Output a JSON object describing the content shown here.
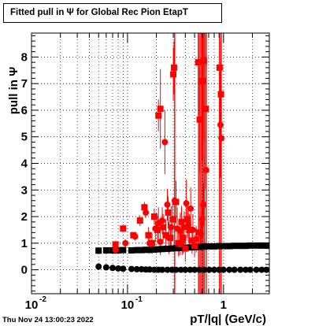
{
  "title": "Fitted pull in  Ψ  for Global Rec Pion EtapT",
  "footer": "Thu Nov 24 13:00:23 2022",
  "chart_data": {
    "type": "scatter",
    "title": "Fitted pull in  Ψ  for Global Rec Pion EtapT",
    "xlabel": "pT/|q| (GeV/c)",
    "ylabel": "pull in  Ψ",
    "xscale": "log",
    "xlim": [
      0.01,
      3.0
    ],
    "ylim": [
      -0.9,
      8.9
    ],
    "grid": true,
    "x_ticks": [
      {
        "value": 0.01,
        "label": "10",
        "exp": "-2"
      },
      {
        "value": 0.1,
        "label": "10",
        "exp": "-1"
      },
      {
        "value": 1,
        "label": "1",
        "exp": ""
      }
    ],
    "y_ticks": [
      0,
      1,
      2,
      3,
      4,
      5,
      6,
      7,
      8
    ],
    "series": [
      {
        "marker": "square",
        "color": "#000000",
        "points": [
          {
            "x": 0.05,
            "y": 0.72
          },
          {
            "x": 0.06,
            "y": 0.73
          },
          {
            "x": 0.07,
            "y": 0.73
          },
          {
            "x": 0.08,
            "y": 0.73
          },
          {
            "x": 0.09,
            "y": 0.74
          },
          {
            "x": 0.11,
            "y": 0.73
          },
          {
            "x": 0.125,
            "y": 0.74
          },
          {
            "x": 0.14,
            "y": 0.74
          },
          {
            "x": 0.155,
            "y": 0.75
          },
          {
            "x": 0.17,
            "y": 0.75
          },
          {
            "x": 0.19,
            "y": 0.76
          },
          {
            "x": 0.21,
            "y": 0.77
          },
          {
            "x": 0.23,
            "y": 0.78
          },
          {
            "x": 0.26,
            "y": 0.79
          },
          {
            "x": 0.29,
            "y": 0.8
          },
          {
            "x": 0.32,
            "y": 0.81
          },
          {
            "x": 0.36,
            "y": 0.82
          },
          {
            "x": 0.4,
            "y": 0.83
          },
          {
            "x": 0.45,
            "y": 0.84
          },
          {
            "x": 0.5,
            "y": 0.85
          },
          {
            "x": 0.56,
            "y": 0.86
          },
          {
            "x": 0.63,
            "y": 0.87
          },
          {
            "x": 0.71,
            "y": 0.88
          },
          {
            "x": 0.8,
            "y": 0.88
          },
          {
            "x": 0.9,
            "y": 0.89
          },
          {
            "x": 1.0,
            "y": 0.89
          },
          {
            "x": 1.15,
            "y": 0.89
          },
          {
            "x": 1.3,
            "y": 0.9
          },
          {
            "x": 1.5,
            "y": 0.9
          },
          {
            "x": 1.7,
            "y": 0.9
          },
          {
            "x": 1.9,
            "y": 0.91
          },
          {
            "x": 2.2,
            "y": 0.91
          },
          {
            "x": 2.5,
            "y": 0.91
          },
          {
            "x": 2.8,
            "y": 0.91
          }
        ]
      },
      {
        "marker": "circle",
        "color": "#000000",
        "points": [
          {
            "x": 0.05,
            "y": 0.12
          },
          {
            "x": 0.06,
            "y": 0.09
          },
          {
            "x": 0.07,
            "y": 0.07
          },
          {
            "x": 0.08,
            "y": 0.05
          },
          {
            "x": 0.09,
            "y": 0.04
          },
          {
            "x": 0.11,
            "y": 0.03
          },
          {
            "x": 0.125,
            "y": 0.02
          },
          {
            "x": 0.14,
            "y": 0.02
          },
          {
            "x": 0.155,
            "y": 0.01
          },
          {
            "x": 0.17,
            "y": 0.01
          },
          {
            "x": 0.19,
            "y": 0.0
          },
          {
            "x": 0.21,
            "y": 0.0
          },
          {
            "x": 0.23,
            "y": 0.0
          },
          {
            "x": 0.26,
            "y": 0.0
          },
          {
            "x": 0.29,
            "y": 0.0
          },
          {
            "x": 0.32,
            "y": 0.0
          },
          {
            "x": 0.36,
            "y": 0.0
          },
          {
            "x": 0.4,
            "y": 0.0
          },
          {
            "x": 0.45,
            "y": 0.0
          },
          {
            "x": 0.5,
            "y": 0.0
          },
          {
            "x": 0.56,
            "y": 0.0
          },
          {
            "x": 0.63,
            "y": 0.0
          },
          {
            "x": 0.71,
            "y": 0.0
          },
          {
            "x": 0.8,
            "y": 0.0
          },
          {
            "x": 0.9,
            "y": 0.0
          },
          {
            "x": 1.0,
            "y": 0.0
          },
          {
            "x": 1.15,
            "y": 0.0
          },
          {
            "x": 1.3,
            "y": 0.0
          },
          {
            "x": 1.5,
            "y": 0.0
          },
          {
            "x": 1.7,
            "y": 0.0
          },
          {
            "x": 1.9,
            "y": 0.0
          },
          {
            "x": 2.2,
            "y": 0.0
          },
          {
            "x": 2.5,
            "y": 0.0
          },
          {
            "x": 2.8,
            "y": 0.0
          }
        ]
      },
      {
        "marker": "square",
        "color": "#ff0000",
        "points": [
          {
            "x": 0.075,
            "y": 0.95,
            "err": 0.15
          },
          {
            "x": 0.09,
            "y": 1.55,
            "err": 0.15
          },
          {
            "x": 0.115,
            "y": 1.3,
            "err": 0.1
          },
          {
            "x": 0.135,
            "y": 1.85,
            "err": 0.2
          },
          {
            "x": 0.15,
            "y": 2.35,
            "err": 0.2
          },
          {
            "x": 0.165,
            "y": 1.3,
            "err": 0.3
          },
          {
            "x": 0.18,
            "y": 1.0,
            "err": 0.4
          },
          {
            "x": 0.19,
            "y": 2.0,
            "err": 0.3
          },
          {
            "x": 0.205,
            "y": 1.5,
            "err": 0.5
          },
          {
            "x": 0.21,
            "y": 5.8,
            "err": 0.6
          },
          {
            "x": 0.22,
            "y": 6.05,
            "err": 1.5
          },
          {
            "x": 0.235,
            "y": 1.6,
            "err": 0.5
          },
          {
            "x": 0.25,
            "y": 1.3,
            "err": 0.6
          },
          {
            "x": 0.265,
            "y": 2.15,
            "err": 0.6
          },
          {
            "x": 0.28,
            "y": 1.2,
            "err": 0.5
          },
          {
            "x": 0.295,
            "y": 1.9,
            "err": 0.7
          },
          {
            "x": 0.3,
            "y": 7.35,
            "err": 1.0
          },
          {
            "x": 0.305,
            "y": 7.6,
            "err": 1.0
          },
          {
            "x": 0.32,
            "y": 2.55,
            "err": 0.8
          },
          {
            "x": 0.34,
            "y": 1.0,
            "err": 0.5
          },
          {
            "x": 0.365,
            "y": 1.8,
            "err": 0.6
          },
          {
            "x": 0.38,
            "y": 1.2,
            "err": 0.6
          },
          {
            "x": 0.4,
            "y": 0.8,
            "err": 0.5
          },
          {
            "x": 0.42,
            "y": 1.9,
            "err": 0.7
          },
          {
            "x": 0.44,
            "y": 1.5,
            "err": 0.6
          },
          {
            "x": 0.47,
            "y": 1.1,
            "err": 0.5
          },
          {
            "x": 0.5,
            "y": 0.9,
            "err": 0.4
          },
          {
            "x": 0.545,
            "y": 7.8,
            "err": 2.0
          },
          {
            "x": 0.565,
            "y": 5.65,
            "err": 2.0
          },
          {
            "x": 0.6,
            "y": 7.1,
            "err": 3.0
          },
          {
            "x": 0.625,
            "y": 7.85,
            "err": 3.0
          },
          {
            "x": 0.65,
            "y": 6.05,
            "err": 3.0
          },
          {
            "x": 0.91,
            "y": 7.6,
            "err": 2.0
          },
          {
            "x": 0.94,
            "y": 6.6,
            "err": 2.0
          },
          {
            "x": 0.55,
            "y": 1.4,
            "err": 0.5
          }
        ]
      },
      {
        "marker": "circle",
        "color": "#ff0000",
        "points": [
          {
            "x": 0.075,
            "y": 0.75,
            "err": 0.15
          },
          {
            "x": 0.095,
            "y": 1.0,
            "err": 0.15
          },
          {
            "x": 0.12,
            "y": 1.25,
            "err": 0.15
          },
          {
            "x": 0.155,
            "y": 2.15,
            "err": 0.2
          },
          {
            "x": 0.17,
            "y": 1.0,
            "err": 0.4
          },
          {
            "x": 0.195,
            "y": 1.55,
            "err": 0.5
          },
          {
            "x": 0.21,
            "y": 1.75,
            "err": 0.6
          },
          {
            "x": 0.22,
            "y": 1.05,
            "err": 0.5
          },
          {
            "x": 0.23,
            "y": 1.85,
            "err": 0.5
          },
          {
            "x": 0.245,
            "y": 4.8,
            "err": 1.2
          },
          {
            "x": 0.26,
            "y": 2.45,
            "err": 0.6
          },
          {
            "x": 0.27,
            "y": 1.2,
            "err": 0.6
          },
          {
            "x": 0.285,
            "y": 1.6,
            "err": 0.8
          },
          {
            "x": 0.31,
            "y": 2.6,
            "err": 1.0
          },
          {
            "x": 0.33,
            "y": 1.55,
            "err": 0.8
          },
          {
            "x": 0.355,
            "y": 1.45,
            "err": 0.7
          },
          {
            "x": 0.37,
            "y": 1.05,
            "err": 0.5
          },
          {
            "x": 0.39,
            "y": 1.6,
            "err": 0.6
          },
          {
            "x": 0.41,
            "y": 2.5,
            "err": 0.9
          },
          {
            "x": 0.43,
            "y": 1.7,
            "err": 0.7
          },
          {
            "x": 0.455,
            "y": 2.3,
            "err": 0.8
          },
          {
            "x": 0.48,
            "y": 1.5,
            "err": 0.6
          },
          {
            "x": 0.52,
            "y": 1.15,
            "err": 0.5
          },
          {
            "x": 0.58,
            "y": 1.35,
            "err": 0.5
          },
          {
            "x": 0.62,
            "y": 2.45,
            "err": 0.8
          },
          {
            "x": 0.66,
            "y": 3.75,
            "err": 1.5
          },
          {
            "x": 0.93,
            "y": 5.45,
            "err": 2.0
          },
          {
            "x": 0.95,
            "y": 4.95,
            "err": 2.0
          },
          {
            "x": 0.6,
            "y": 1.9,
            "err": 0.7
          },
          {
            "x": 0.35,
            "y": 0.95,
            "err": 0.4
          }
        ]
      }
    ],
    "full_span_error_x": [
      0.31,
      0.55,
      0.57,
      0.59,
      0.61,
      0.63,
      0.66,
      0.91,
      0.945
    ]
  }
}
